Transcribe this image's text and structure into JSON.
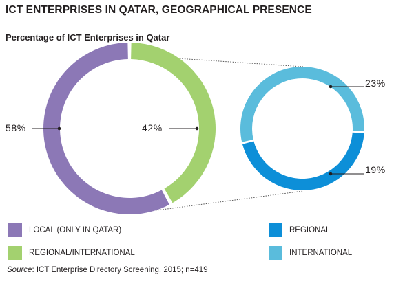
{
  "header": {
    "title": "ICT ENTERPRISES IN QATAR, GEOGRAPHICAL PRESENCE",
    "subtitle": "Percentage of ICT Enterprises in Qatar"
  },
  "chart_data": [
    {
      "type": "pie",
      "variant": "donut",
      "title": "Percentage of ICT Enterprises in Qatar",
      "slices": [
        {
          "name": "LOCAL (ONLY IN QATAR)",
          "value": 58,
          "label": "58%",
          "color": "#8c78b6"
        },
        {
          "name": "REGIONAL/INTERNATIONAL",
          "value": 42,
          "label": "42%",
          "color": "#a3d16f"
        }
      ]
    },
    {
      "type": "pie",
      "variant": "donut",
      "breakdown_of": "REGIONAL/INTERNATIONAL",
      "slices": [
        {
          "name": "INTERNATIONAL",
          "value": 23,
          "label": "23%",
          "color": "#5abcdc"
        },
        {
          "name": "REGIONAL",
          "value": 19,
          "label": "19%",
          "color": "#0d8fd8"
        }
      ]
    }
  ],
  "legend": {
    "placement": "bottom",
    "items": [
      {
        "label": "LOCAL (ONLY IN QATAR)",
        "color": "#8c78b6"
      },
      {
        "label": "REGIONAL/INTERNATIONAL",
        "color": "#a3d16f"
      },
      {
        "label": "REGIONAL",
        "color": "#0d8fd8"
      },
      {
        "label": "INTERNATIONAL",
        "color": "#5abcdc"
      }
    ]
  },
  "footer": {
    "source_label": "Source",
    "source_text": ": ICT Enterprise Directory Screening, 2015; n=419"
  }
}
